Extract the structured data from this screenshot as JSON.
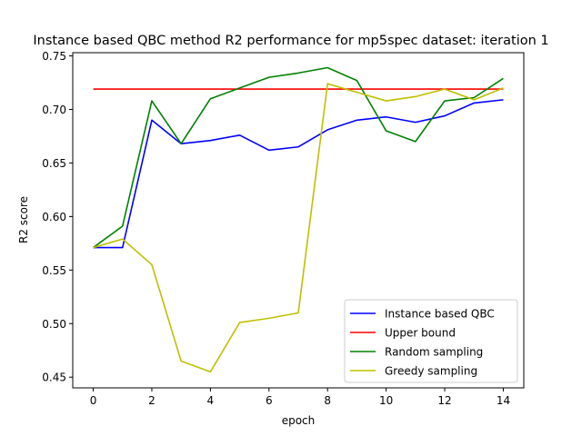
{
  "chart_data": {
    "type": "line",
    "title": "Instance based QBC method R2 performance for mp5spec dataset: iteration 1",
    "xlabel": "epoch",
    "ylabel": "R2 score",
    "xlim": [
      -0.7,
      14.7
    ],
    "ylim": [
      0.44,
      0.753
    ],
    "x_ticks": [
      0,
      2,
      4,
      6,
      8,
      10,
      12,
      14
    ],
    "y_ticks": [
      0.45,
      0.5,
      0.55,
      0.6,
      0.65,
      0.7,
      0.75
    ],
    "y_tick_labels": [
      "0.45",
      "0.50",
      "0.55",
      "0.60",
      "0.65",
      "0.70",
      "0.75"
    ],
    "grid": false,
    "legend_position": "lower-right",
    "x": [
      0,
      1,
      2,
      3,
      4,
      5,
      6,
      7,
      8,
      9,
      10,
      11,
      12,
      13,
      14
    ],
    "series": [
      {
        "name": "Instance based QBC",
        "color": "#0000ff",
        "values": [
          0.571,
          0.571,
          0.69,
          0.668,
          0.671,
          0.676,
          0.662,
          0.665,
          0.681,
          0.69,
          0.693,
          0.688,
          0.694,
          0.706,
          0.709
        ]
      },
      {
        "name": "Upper bound",
        "color": "#ff0000",
        "values": [
          0.719,
          0.719,
          0.719,
          0.719,
          0.719,
          0.719,
          0.719,
          0.719,
          0.719,
          0.719,
          0.719,
          0.719,
          0.719,
          0.719,
          0.719
        ]
      },
      {
        "name": "Random sampling",
        "color": "#008000",
        "values": [
          0.571,
          0.591,
          0.708,
          0.668,
          0.71,
          0.72,
          0.73,
          0.734,
          0.739,
          0.727,
          0.68,
          0.67,
          0.708,
          0.711,
          0.729
        ]
      },
      {
        "name": "Greedy sampling",
        "color": "#bfbf00",
        "values": [
          0.571,
          0.579,
          0.555,
          0.465,
          0.455,
          0.501,
          0.505,
          0.51,
          0.724,
          0.716,
          0.708,
          0.712,
          0.719,
          0.709,
          0.72
        ]
      }
    ]
  }
}
